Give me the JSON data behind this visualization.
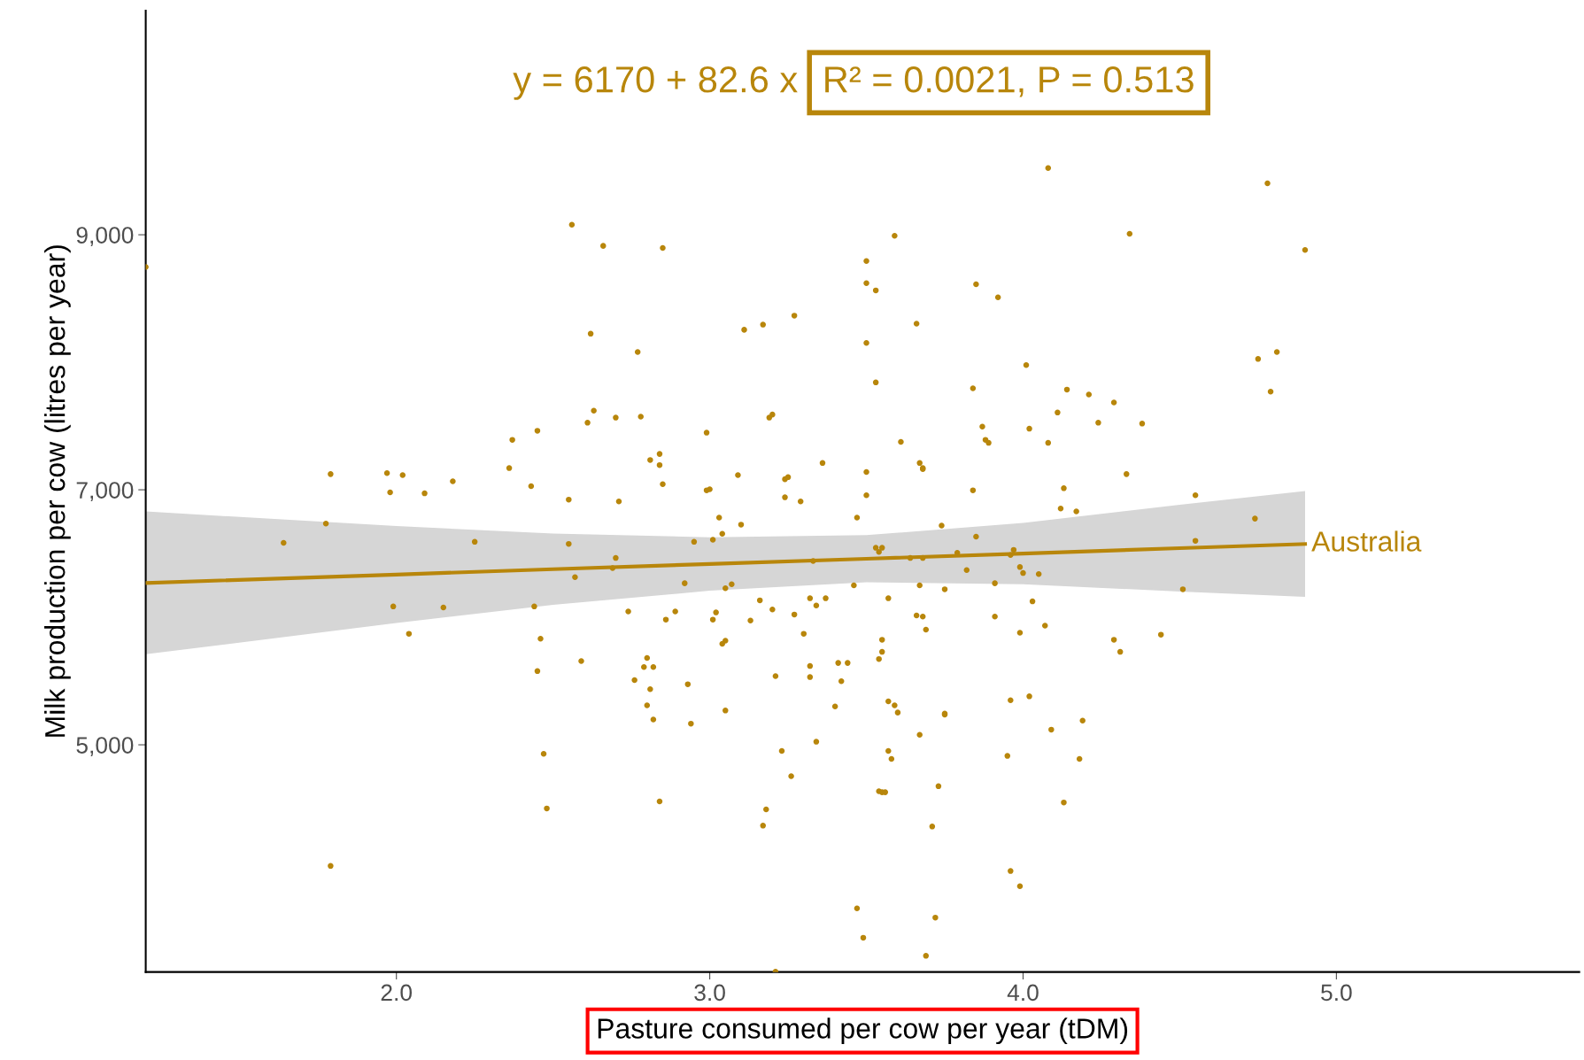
{
  "chart_data": {
    "type": "scatter",
    "xlabel": "Pasture consumed per cow per year (tDM)",
    "ylabel": "Milk production per cow (litres per year)",
    "annotations": [
      "y = 6170 + 82.6 x",
      "R² = 0.0021, P = 0.513"
    ],
    "xlim": [
      1.2,
      5.775
    ],
    "xticks": [
      {
        "value": 2,
        "label": "2.0"
      },
      {
        "value": 3,
        "label": "3.0"
      },
      {
        "value": 4,
        "label": "4.0"
      },
      {
        "value": 5,
        "label": "5.0"
      }
    ],
    "ylim": [
      3218,
      10758
    ],
    "yticks": [
      {
        "value": 5000,
        "label": "5,000"
      },
      {
        "value": 7000,
        "label": "7,000"
      },
      {
        "value": 9000,
        "label": "9,000"
      }
    ],
    "grid": false,
    "series": [
      {
        "marker": "circle",
        "color": "#b8860b",
        "x": [
          1.2,
          1.64,
          1.775,
          1.79,
          1.79,
          1.97,
          1.98,
          2.02,
          1.99,
          2.04,
          2.09,
          2.15,
          2.18,
          2.25,
          2.36,
          2.37,
          2.43,
          2.44,
          2.45,
          2.45,
          2.46,
          2.47,
          2.48,
          2.55,
          2.55,
          2.56,
          2.57,
          2.59,
          2.61,
          2.62,
          2.63,
          2.66,
          2.69,
          2.7,
          2.7,
          2.71,
          2.74,
          2.76,
          2.77,
          2.78,
          2.79,
          2.8,
          2.8,
          2.81,
          2.81,
          2.82,
          2.82,
          2.84,
          2.84,
          2.84,
          2.85,
          2.85,
          2.86,
          2.89,
          2.92,
          2.93,
          2.94,
          2.95,
          2.99,
          2.99,
          3.0,
          3.01,
          3.01,
          3.02,
          3.03,
          3.04,
          3.04,
          3.05,
          3.05,
          3.05,
          3.07,
          3.09,
          3.1,
          3.11,
          3.13,
          3.16,
          3.17,
          3.17,
          3.18,
          3.19,
          3.2,
          3.2,
          3.21,
          3.21,
          3.23,
          3.24,
          3.24,
          3.25,
          3.26,
          3.27,
          3.27,
          3.29,
          3.3,
          3.32,
          3.32,
          3.32,
          3.33,
          3.34,
          3.34,
          3.36,
          3.37,
          3.4,
          3.41,
          3.42,
          3.44,
          3.46,
          3.47,
          3.47,
          3.49,
          3.5,
          3.5,
          3.5,
          3.5,
          3.5,
          3.53,
          3.53,
          3.53,
          3.54,
          3.54,
          3.54,
          3.55,
          3.55,
          3.55,
          3.55,
          3.56,
          3.57,
          3.57,
          3.57,
          3.58,
          3.59,
          3.59,
          3.6,
          3.61,
          3.64,
          3.66,
          3.66,
          3.67,
          3.67,
          3.67,
          3.68,
          3.68,
          3.68,
          3.68,
          3.69,
          3.69,
          3.71,
          3.72,
          3.73,
          3.74,
          3.75,
          3.75,
          3.75,
          3.79,
          3.82,
          3.84,
          3.84,
          3.85,
          3.85,
          3.87,
          3.88,
          3.89,
          3.91,
          3.91,
          3.92,
          3.95,
          3.96,
          3.96,
          3.96,
          3.97,
          3.99,
          3.99,
          3.99,
          4.0,
          4.01,
          4.02,
          4.02,
          4.03,
          4.05,
          4.07,
          4.08,
          4.08,
          4.09,
          4.11,
          4.12,
          4.13,
          4.13,
          4.14,
          4.17,
          4.18,
          4.19,
          4.21,
          4.24,
          4.29,
          4.29,
          4.31,
          4.33,
          4.34,
          4.38,
          4.44,
          4.51,
          4.55,
          4.55,
          4.74,
          4.75,
          4.78,
          4.79,
          4.81,
          4.9
        ],
        "values": [
          8747,
          6584,
          6735,
          7123,
          4050,
          7131,
          6980,
          7115,
          6085,
          5871,
          6972,
          6077,
          7067,
          6592,
          7170,
          7392,
          7028,
          6085,
          7463,
          5578,
          5832,
          4929,
          4501,
          6923,
          6576,
          9079,
          6315,
          5657,
          7526,
          8224,
          7620,
          8913,
          6386,
          6465,
          7566,
          6909,
          6046,
          5507,
          8081,
          7574,
          5610,
          5681,
          5309,
          7234,
          5436,
          5610,
          5198,
          7194,
          7281,
          4556,
          8897,
          7044,
          5982,
          6046,
          6267,
          5475,
          5166,
          6592,
          7448,
          6996,
          7004,
          6608,
          5982,
          6038,
          6782,
          6655,
          5792,
          5816,
          5269,
          6228,
          6259,
          7115,
          6727,
          8255,
          5974,
          6133,
          8295,
          4366,
          4493,
          7566,
          7590,
          6061,
          3220,
          5539,
          4952,
          7083,
          6941,
          7099,
          4754,
          6022,
          8366,
          6909,
          5871,
          6149,
          5531,
          5618,
          6442,
          6093,
          5024,
          7210,
          6149,
          5301,
          5642,
          5499,
          5642,
          6251,
          6782,
          3717,
          3487,
          6957,
          7139,
          8152,
          8794,
          8620,
          8564,
          6545,
          7842,
          6513,
          5673,
          4636,
          6545,
          4628,
          5729,
          5824,
          4628,
          5341,
          6149,
          4952,
          4889,
          5309,
          8992,
          5253,
          7376,
          6465,
          8303,
          6014,
          6251,
          5079,
          7210,
          7170,
          7162,
          6465,
          6006,
          3345,
          5903,
          4359,
          3645,
          4675,
          6719,
          5245,
          5237,
          6220,
          6505,
          6370,
          6996,
          7796,
          6632,
          8612,
          7495,
          7392,
          7368,
          6267,
          6006,
          8509,
          4913,
          5349,
          4010,
          6489,
          6529,
          3891,
          6394,
          5879,
          6347,
          7978,
          7479,
          5380,
          6125,
          6339,
          5935,
          7368,
          9523,
          5119,
          7606,
          6853,
          7012,
          4548,
          7786,
          6830,
          4889,
          5190,
          7747,
          7526,
          5824,
          7685,
          5729,
          7123,
          9008,
          7519,
          5864,
          6220,
          6957,
          6600,
          6774,
          8026,
          9404,
          7770,
          8081,
          8881
        ]
      },
      {
        "type": "line",
        "name": "Australia",
        "color": "#b8860b",
        "line_style": "solid",
        "x": [
          1.2,
          2.0,
          2.5,
          3.0,
          3.5,
          4.0,
          4.5,
          4.9
        ],
        "values": [
          6269,
          6335,
          6377,
          6418,
          6459,
          6500,
          6542,
          6575
        ],
        "lower": [
          5710,
          5955,
          6097,
          6208,
          6274,
          6260,
          6202,
          6160
        ],
        "upper": [
          6830,
          6715,
          6657,
          6628,
          6644,
          6740,
          6882,
          6990
        ]
      }
    ]
  }
}
